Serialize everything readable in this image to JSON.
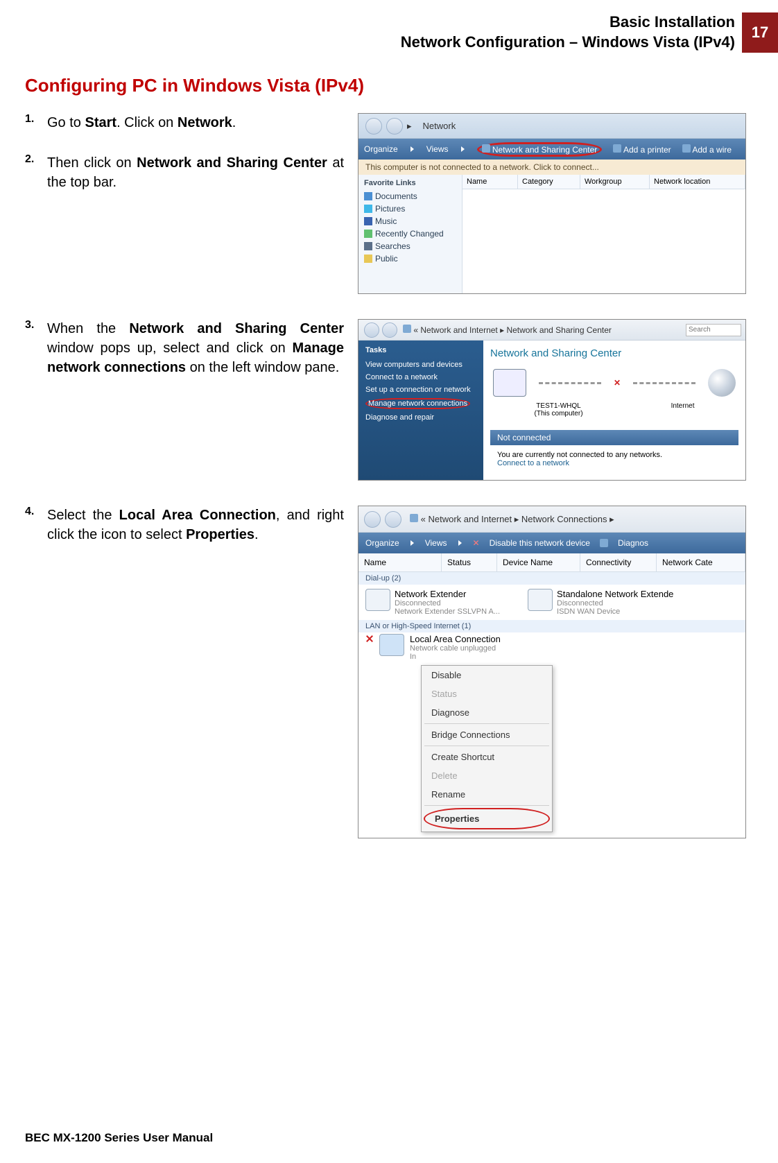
{
  "page": {
    "header_line1": "Basic Installation",
    "header_line2": "Network Configuration – Windows Vista (IPv4)",
    "page_number": "17",
    "section_title": "Configuring PC in Windows Vista (IPv4)",
    "footer": "BEC MX-1200 Series User Manual"
  },
  "steps": {
    "s1": {
      "num": "1.",
      "pre": "Go to ",
      "b1": "Start",
      "mid": ". Click on ",
      "b2": "Network",
      "post": "."
    },
    "s2": {
      "num": "2.",
      "pre": "Then click on ",
      "b1": "Network and Sharing Center",
      "post": " at the top bar."
    },
    "s3": {
      "num": "3.",
      "pre": "When the ",
      "b1": "Network and Sharing Center",
      "mid": " window pops up, select and click on ",
      "b2": "Manage network connections",
      "post": " on the left window pane."
    },
    "s4": {
      "num": "4.",
      "pre": "Select the ",
      "b1": "Local Area Connection",
      "mid": ", and right click the icon to select ",
      "b2": "Properties",
      "post": "."
    }
  },
  "shot1": {
    "breadcrumb": "Network",
    "toolbar": {
      "organize": "Organize",
      "views": "Views",
      "nsc": "Network and Sharing Center",
      "addprinter": "Add a printer",
      "addwire": "Add a wire"
    },
    "infobar": "This computer is not connected to a network. Click to connect...",
    "sidebar_header": "Favorite Links",
    "sidebar_items": [
      "Documents",
      "Pictures",
      "Music",
      "Recently Changed",
      "Searches",
      "Public"
    ],
    "sidebar_colors": [
      "#4a8fd3",
      "#3fb8e8",
      "#3963b0",
      "#5fc070",
      "#5a6f89",
      "#e8c756"
    ],
    "columns": [
      "Name",
      "Category",
      "Workgroup",
      "Network location"
    ]
  },
  "shot2": {
    "breadcrumb_pre": "« Network and Internet",
    "breadcrumb_cur": "Network and Sharing Center",
    "search": "Search",
    "tasks_title": "Tasks",
    "tasks": [
      "View computers and devices",
      "Connect to a network",
      "Set up a connection or network",
      "Manage network connections",
      "Diagnose and repair"
    ],
    "main_title": "Network and Sharing Center",
    "node1": "TEST1-WHQL",
    "node1_sub": "(This computer)",
    "node2": "Internet",
    "bar": "Not connected",
    "text": "You are currently not connected to any networks.",
    "link": "Connect to a network"
  },
  "shot3": {
    "breadcrumb_pre": "« Network and Internet",
    "breadcrumb_cur": "Network Connections",
    "toolbar": {
      "organize": "Organize",
      "views": "Views",
      "disable": "Disable this network device",
      "diagnos": "Diagnos"
    },
    "columns": [
      "Name",
      "Status",
      "Device Name",
      "Connectivity",
      "Network Cate"
    ],
    "group1": "Dial-up (2)",
    "conn1": {
      "name": "Network Extender",
      "status": "Disconnected",
      "dev": "Network Extender SSLVPN A..."
    },
    "conn2": {
      "name": "Standalone Network Extende",
      "status": "Disconnected",
      "dev": "ISDN WAN Device"
    },
    "group2": "LAN or High-Speed Internet (1)",
    "lac": {
      "name": "Local Area Connection",
      "status": "Network cable unplugged",
      "dev": "In"
    },
    "menu": [
      "Disable",
      "Status",
      "Diagnose",
      "Bridge Connections",
      "Create Shortcut",
      "Delete",
      "Rename",
      "Properties"
    ]
  }
}
